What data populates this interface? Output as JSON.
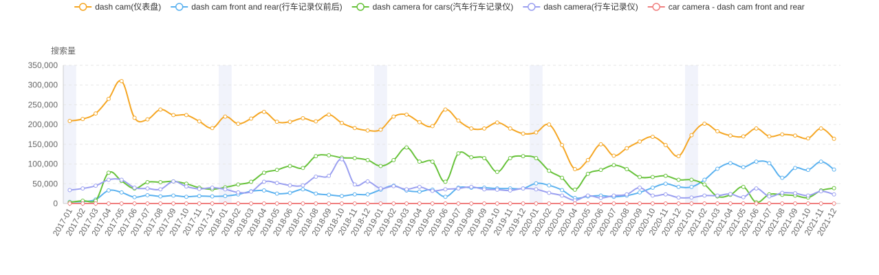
{
  "chart_data": {
    "type": "line",
    "ylabel": "搜索量",
    "ylim": [
      0,
      350000
    ],
    "yticks": [
      0,
      50000,
      100000,
      150000,
      200000,
      250000,
      300000,
      350000
    ],
    "ytick_labels": [
      "0",
      "50,000",
      "100,000",
      "150,000",
      "200,000",
      "250,000",
      "300,000",
      "350,000"
    ],
    "legend_position": "top",
    "grid": true,
    "highlight_months": [
      "2017-01",
      "2018-01",
      "2019-01",
      "2020-01",
      "2021-01"
    ],
    "x": [
      "2017-01",
      "2017-02",
      "2017-03",
      "2017-04",
      "2017-05",
      "2017-06",
      "2017-07",
      "2017-08",
      "2017-09",
      "2017-10",
      "2017-11",
      "2017-12",
      "2018-01",
      "2018-02",
      "2018-03",
      "2018-04",
      "2018-05",
      "2018-06",
      "2018-07",
      "2018-08",
      "2018-09",
      "2018-10",
      "2018-11",
      "2018-12",
      "2019-01",
      "2019-02",
      "2019-03",
      "2019-04",
      "2019-05",
      "2019-06",
      "2019-07",
      "2019-08",
      "2019-09",
      "2019-10",
      "2019-11",
      "2019-12",
      "2020-01",
      "2020-02",
      "2020-03",
      "2020-04",
      "2020-05",
      "2020-06",
      "2020-07",
      "2020-08",
      "2020-09",
      "2020-10",
      "2020-11",
      "2020-12",
      "2021-01",
      "2021-02",
      "2021-03",
      "2021-04",
      "2021-05",
      "2021-06",
      "2021-07",
      "2021-08",
      "2021-09",
      "2021-10",
      "2021-11",
      "2021-12"
    ],
    "series": [
      {
        "name": "dash cam(仪表盘)",
        "color": "#f5a623",
        "values": [
          209000,
          214000,
          228000,
          265000,
          310000,
          217000,
          213000,
          238000,
          224000,
          224000,
          208000,
          191000,
          220000,
          202000,
          215000,
          232000,
          207000,
          207000,
          216000,
          208000,
          225000,
          204000,
          191000,
          185000,
          187000,
          220000,
          225000,
          206000,
          196000,
          238000,
          210000,
          190000,
          190000,
          205000,
          190000,
          177000,
          180000,
          200000,
          148000,
          87000,
          110000,
          150000,
          121000,
          140000,
          157000,
          169000,
          148000,
          120000,
          173000,
          202000,
          183000,
          172000,
          170000,
          190000,
          170000,
          175000,
          172000,
          165000,
          190000,
          164000
        ]
      },
      {
        "name": "dash cam front and rear(行车记录仪前后)",
        "color": "#5ab1ef",
        "values": [
          4000,
          5000,
          10000,
          33000,
          28000,
          16000,
          21000,
          18000,
          20000,
          17000,
          19000,
          18000,
          19000,
          23000,
          31000,
          33000,
          25000,
          27000,
          36000,
          25000,
          22000,
          19000,
          23000,
          23000,
          35000,
          45000,
          33000,
          30000,
          35000,
          17000,
          40000,
          40000,
          40000,
          38000,
          38000,
          38000,
          51000,
          46000,
          34000,
          14000,
          18000,
          20000,
          17000,
          20000,
          28000,
          40000,
          50000,
          42000,
          42000,
          60000,
          88000,
          102000,
          92000,
          106000,
          102000,
          65000,
          90000,
          85000,
          106000,
          86000
        ]
      },
      {
        "name": "dash camera for cars(汽车行车记录仪)",
        "color": "#67c23a",
        "values": [
          3000,
          7000,
          7000,
          78000,
          57000,
          38000,
          54000,
          54000,
          56000,
          50000,
          40000,
          36000,
          41000,
          48000,
          55000,
          78000,
          85000,
          95000,
          90000,
          120000,
          122000,
          116000,
          115000,
          110000,
          95000,
          110000,
          142000,
          106000,
          106000,
          55000,
          127000,
          117000,
          115000,
          80000,
          115000,
          120000,
          115000,
          83000,
          65000,
          35000,
          75000,
          85000,
          97000,
          87000,
          67000,
          67000,
          70000,
          60000,
          60000,
          48000,
          18000,
          22000,
          42000,
          3000,
          23000,
          22000,
          20000,
          15000,
          33000,
          39000
        ]
      },
      {
        "name": "dash camera(行车记录仪)",
        "color": "#9a9ff0",
        "values": [
          34000,
          38000,
          45000,
          60000,
          60000,
          40000,
          38000,
          36000,
          56000,
          43000,
          37000,
          40000,
          36000,
          28000,
          30000,
          55000,
          52000,
          46000,
          46000,
          68000,
          70000,
          112000,
          48000,
          56000,
          38000,
          44000,
          36000,
          42000,
          32000,
          36000,
          38000,
          42000,
          36000,
          35000,
          33000,
          38000,
          36000,
          27000,
          20000,
          8000,
          20000,
          14000,
          20000,
          23000,
          40000,
          20000,
          23000,
          15000,
          15000,
          20000,
          20000,
          24000,
          16000,
          38000,
          18000,
          27000,
          26000,
          20000,
          31000,
          23000
        ]
      },
      {
        "name": "car camera - dash cam front and rear",
        "color": "#f08080",
        "values": [
          0,
          0,
          0,
          0,
          0,
          0,
          0,
          0,
          0,
          0,
          0,
          0,
          0,
          0,
          0,
          0,
          0,
          0,
          0,
          0,
          0,
          0,
          0,
          0,
          0,
          0,
          0,
          0,
          0,
          0,
          0,
          0,
          0,
          0,
          0,
          0,
          0,
          0,
          0,
          0,
          0,
          0,
          0,
          0,
          0,
          0,
          0,
          0,
          0,
          0,
          0,
          0,
          0,
          0,
          0,
          0,
          0,
          0,
          0,
          0
        ]
      }
    ]
  }
}
